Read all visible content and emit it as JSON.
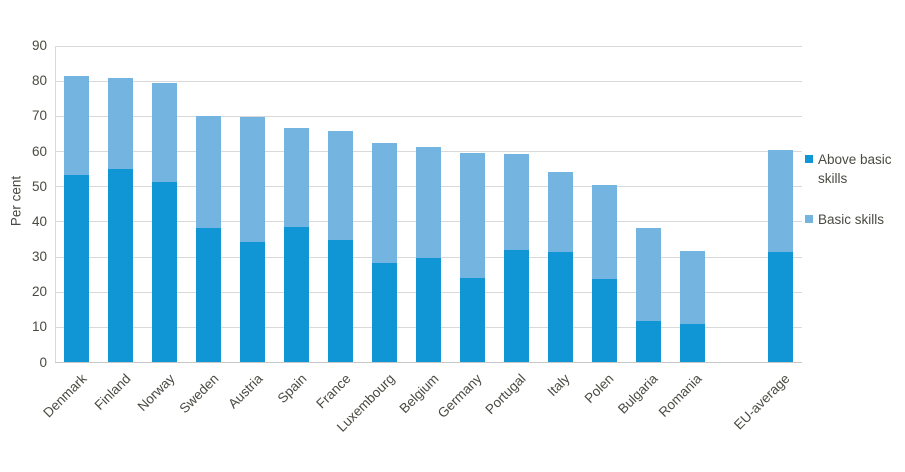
{
  "chart_data": {
    "type": "bar",
    "stacked": true,
    "orientation": "vertical",
    "title": "",
    "xlabel": "",
    "ylabel": "Per cent",
    "ylim": [
      0,
      90
    ],
    "yticks": [
      90,
      80,
      70,
      60,
      50,
      40,
      30,
      20,
      10,
      0
    ],
    "grid": "horizontal",
    "legend_position": "right",
    "gap_before_last_category": true,
    "categories": [
      "Denmark",
      "Finland",
      "Norway",
      "Sweden",
      "Austria",
      "Spain",
      "France",
      "Luxembourg",
      "Belgium",
      "Germany",
      "Portugal",
      "Italy",
      "Polen",
      "Bulgaria",
      "Romania",
      "EU-average"
    ],
    "series": [
      {
        "name": "Above basic skills",
        "color": "#1095d5",
        "values": [
          53.2,
          55.0,
          51.2,
          38.2,
          34.2,
          38.6,
          34.9,
          28.2,
          29.6,
          24.1,
          32.0,
          31.3,
          23.6,
          11.8,
          11.0,
          31.3
        ]
      },
      {
        "name": "Basic skills",
        "color": "#74b4e1",
        "values": [
          28.2,
          25.9,
          28.4,
          31.8,
          35.6,
          28.0,
          30.9,
          34.2,
          31.7,
          35.4,
          27.3,
          23.0,
          26.8,
          26.4,
          20.8,
          29.0
        ]
      }
    ],
    "totals": [
      81.4,
      80.9,
      79.6,
      70.0,
      69.8,
      66.6,
      65.8,
      62.4,
      61.3,
      59.5,
      59.3,
      54.3,
      50.4,
      38.2,
      31.8,
      60.3
    ],
    "styles": {
      "grid_color": "#d9d9d9",
      "axis_color": "#c7c7c7",
      "text_color": "#4a4a42"
    }
  }
}
